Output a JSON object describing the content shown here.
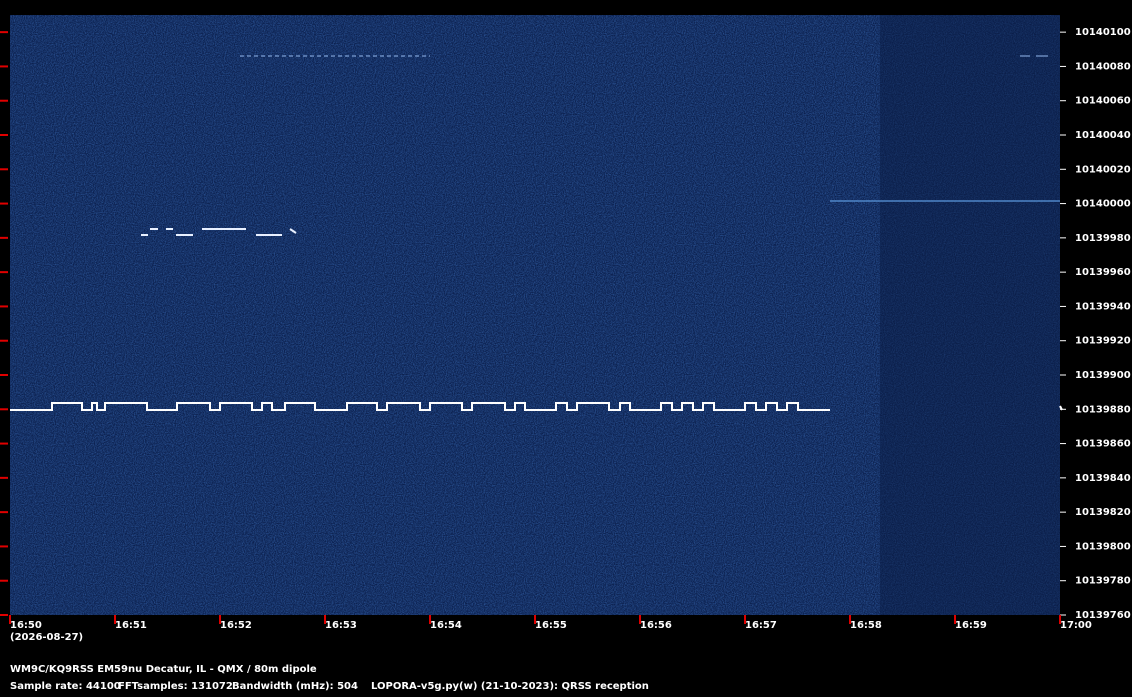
{
  "chart_data": {
    "type": "spectrogram",
    "categories": [
      "16:50",
      "16:51",
      "16:52",
      "16:53",
      "16:54",
      "16:55",
      "16:56",
      "16:57",
      "16:58",
      "16:59",
      "17:00"
    ],
    "date_label": "(2026-08-27)",
    "ylim": [
      10139760,
      10140110
    ],
    "yticks": [
      10139760,
      10139780,
      10139800,
      10139820,
      10139840,
      10139860,
      10139880,
      10139900,
      10139920,
      10139940,
      10139960,
      10139980,
      10140000,
      10140020,
      10140040,
      10140060,
      10140080,
      10140100
    ],
    "tick_color": "#e00000",
    "station": "WM9C/KQ9RSS EM59nu Decatur, IL - QMX / 80m dipole",
    "sample_rate": "Sample rate: 44100",
    "fft_samples": "FFTsamples: 131072",
    "bandwidth": "Bandwidth (mHz): 504",
    "software": "LOPORA-v5g.py(w) (21-10-2023): QRSS reception"
  }
}
